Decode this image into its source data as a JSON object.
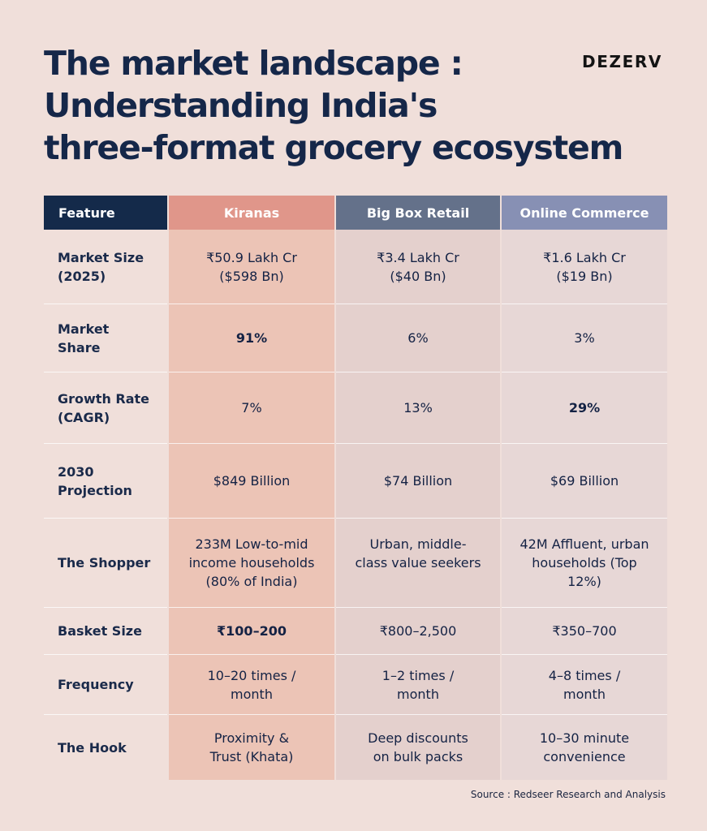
{
  "title_lines": [
    "The market landscape :",
    "Understanding India's",
    "three-format grocery ecosystem"
  ],
  "logo": "DEZERV",
  "table": {
    "headers": [
      "Feature",
      "Kiranas",
      "Big Box Retail",
      "Online Commerce"
    ],
    "rows": [
      {
        "feature": "Market Size (2025)",
        "kiranas": "₹50.9 Lakh Cr ($598 Bn)",
        "big_box": "₹3.4 Lakh Cr ($40 Bn)",
        "online": "₹1.6 Lakh Cr ($19 Bn)"
      },
      {
        "feature": "Market Share",
        "kiranas": "91%",
        "big_box": "6%",
        "online": "3%"
      },
      {
        "feature": "Growth Rate (CAGR)",
        "kiranas": "7%",
        "big_box": "13%",
        "online": "29%"
      },
      {
        "feature": "2030 Projection",
        "kiranas": "$849 Billion",
        "big_box": "$74 Billion",
        "online": "$69 Billion"
      },
      {
        "feature": "The Shopper",
        "kiranas": "233M Low-to-mid income households (80% of India)",
        "big_box": "Urban, middle-class value seekers",
        "online": "42M Affluent, urban households (Top 12%)"
      },
      {
        "feature": "Basket Size",
        "kiranas": "₹100–200",
        "big_box": "₹800–2,500",
        "online": "₹350–700"
      },
      {
        "feature": "Frequency",
        "kiranas": "10–20 times / month",
        "big_box": "1–2 times / month",
        "online": "4–8 times / month"
      },
      {
        "feature": "The Hook",
        "kiranas": "Proximity & Trust (Khata)",
        "big_box": "Deep discounts on bulk packs",
        "online": "10–30 minute convenience"
      }
    ]
  },
  "source": "Source : Redseer Research and Analysis",
  "colors": {
    "background": "#f0dfda",
    "navy": "#142a4a",
    "kiranas_header": "#e0968a",
    "big_box_header": "#64718a",
    "online_header": "#8790b4"
  }
}
